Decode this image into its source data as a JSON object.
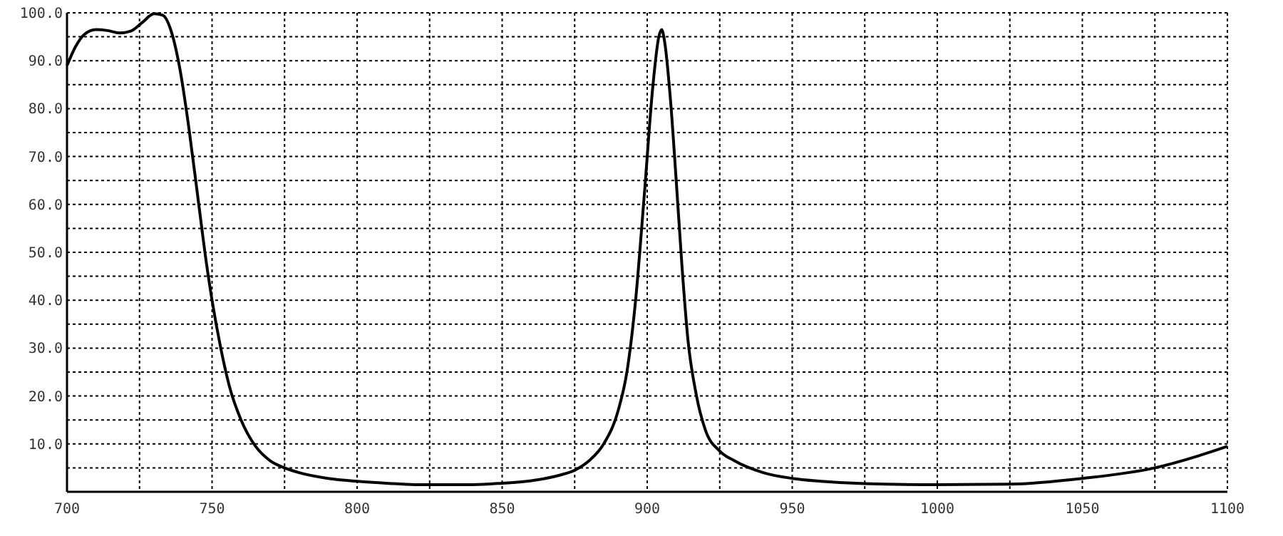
{
  "chart_data": {
    "type": "line",
    "x": [
      700,
      703,
      706,
      710,
      714,
      718,
      722,
      726,
      730,
      733,
      736,
      739,
      742,
      745,
      748,
      750,
      753,
      756,
      760,
      765,
      770,
      775,
      780,
      790,
      800,
      810,
      820,
      840,
      850,
      860,
      870,
      875,
      880,
      885,
      890,
      893,
      896,
      899,
      902,
      904,
      905,
      906,
      908,
      910,
      912,
      914,
      917,
      920,
      925,
      930,
      940,
      950,
      960,
      975,
      1000,
      1025,
      1050,
      1075,
      1090,
      1100
    ],
    "series": [
      {
        "color": "#000000",
        "values": [
          89,
          93,
          95.5,
          96.5,
          96.3,
          95.8,
          96.2,
          98,
          99.8,
          99.5,
          96,
          88,
          76,
          62,
          48,
          40,
          30,
          22,
          15,
          9.5,
          6.5,
          5,
          4,
          2.8,
          2.2,
          1.8,
          1.5,
          1.5,
          1.8,
          2.3,
          3.5,
          4.5,
          6.5,
          10,
          17,
          25,
          40,
          62,
          85,
          95,
          96.5,
          94,
          82,
          65,
          47,
          32,
          20,
          13,
          8.5,
          6.5,
          4,
          2.8,
          2.2,
          1.7,
          1.5,
          1.6,
          2.8,
          5,
          7.5,
          9.5
        ]
      }
    ],
    "xlim": [
      700,
      1100
    ],
    "xticks": [
      700,
      {
        "value": 725,
        "label": null
      },
      750,
      {
        "value": 775,
        "label": null
      },
      800,
      {
        "value": 825,
        "label": null
      },
      850,
      {
        "value": 875,
        "label": null
      },
      900,
      {
        "value": 925,
        "label": null
      },
      950,
      {
        "value": 975,
        "label": null
      },
      1000,
      {
        "value": 1025,
        "label": null
      },
      1050,
      {
        "value": 1075,
        "label": null
      },
      1100
    ],
    "ylim": [
      0,
      100
    ],
    "yticks": [
      {
        "value": 5,
        "label": null
      },
      {
        "value": 10,
        "label": "10.0"
      },
      {
        "value": 15,
        "label": null
      },
      {
        "value": 20,
        "label": "20.0"
      },
      {
        "value": 25,
        "label": null
      },
      {
        "value": 30,
        "label": "30.0"
      },
      {
        "value": 35,
        "label": null
      },
      {
        "value": 40,
        "label": "40.0"
      },
      {
        "value": 45,
        "label": null
      },
      {
        "value": 50,
        "label": "50.0"
      },
      {
        "value": 55,
        "label": null
      },
      {
        "value": 60,
        "label": "60.0"
      },
      {
        "value": 65,
        "label": null
      },
      {
        "value": 70,
        "label": "70.0"
      },
      {
        "value": 75,
        "label": null
      },
      {
        "value": 80,
        "label": "80.0"
      },
      {
        "value": 85,
        "label": null
      },
      {
        "value": 90,
        "label": "90.0"
      },
      {
        "value": 95,
        "label": null
      },
      {
        "value": 100,
        "label": "100.0"
      }
    ],
    "grid": true,
    "marker": "none",
    "line_style": "solid"
  }
}
